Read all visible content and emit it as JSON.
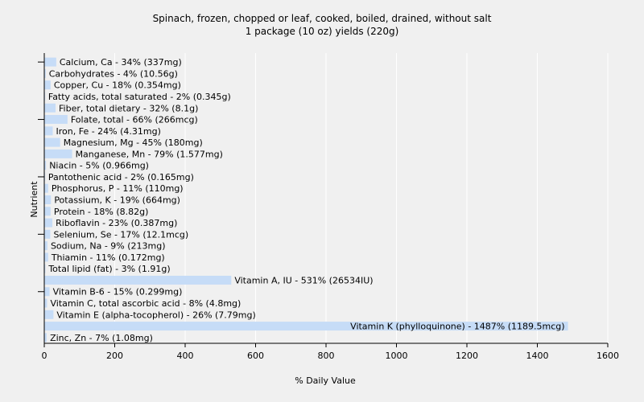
{
  "chart_data": {
    "type": "bar",
    "orientation": "horizontal",
    "title": "Spinach, frozen, chopped or leaf, cooked, boiled, drained, without salt",
    "subtitle": "1 package (10 oz) yields (220g)",
    "xlabel": "% Daily Value",
    "ylabel": "Nutrient",
    "xlim": [
      0,
      1600
    ],
    "xticks": [
      0,
      200,
      400,
      600,
      800,
      1000,
      1200,
      1400,
      1600
    ],
    "grid": true,
    "bar_color": "#c6dcf7",
    "categories": [
      "Calcium, Ca",
      "Carbohydrates",
      "Copper, Cu",
      "Fatty acids, total saturated",
      "Fiber, total dietary",
      "Folate, total",
      "Iron, Fe",
      "Magnesium, Mg",
      "Manganese, Mn",
      "Niacin",
      "Pantothenic acid",
      "Phosphorus, P",
      "Potassium, K",
      "Protein",
      "Riboflavin",
      "Selenium, Se",
      "Sodium, Na",
      "Thiamin",
      "Total lipid (fat)",
      "Vitamin A, IU",
      "Vitamin B-6",
      "Vitamin C, total ascorbic acid",
      "Vitamin E (alpha-tocopherol)",
      "Vitamin K (phylloquinone)",
      "Zinc, Zn"
    ],
    "values": [
      34,
      4,
      18,
      2,
      32,
      66,
      24,
      45,
      79,
      5,
      2,
      11,
      19,
      18,
      23,
      17,
      9,
      11,
      3,
      531,
      15,
      8,
      26,
      1487,
      7
    ],
    "labels": [
      "Calcium, Ca - 34% (337mg)",
      "Carbohydrates - 4% (10.56g)",
      "Copper, Cu - 18% (0.354mg)",
      "Fatty acids, total saturated - 2% (0.345g)",
      "Fiber, total dietary - 32% (8.1g)",
      "Folate, total - 66% (266mcg)",
      "Iron, Fe - 24% (4.31mg)",
      "Magnesium, Mg - 45% (180mg)",
      "Manganese, Mn - 79% (1.577mg)",
      "Niacin - 5% (0.966mg)",
      "Pantothenic acid - 2% (0.165mg)",
      "Phosphorus, P - 11% (110mg)",
      "Potassium, K - 19% (664mg)",
      "Protein - 18% (8.82g)",
      "Riboflavin - 23% (0.387mg)",
      "Selenium, Se - 17% (12.1mcg)",
      "Sodium, Na - 9% (213mg)",
      "Thiamin - 11% (0.172mg)",
      "Total lipid (fat) - 3% (1.91g)",
      "Vitamin A, IU - 531% (26534IU)",
      "Vitamin B-6 - 15% (0.299mg)",
      "Vitamin C, total ascorbic acid - 8% (4.8mg)",
      "Vitamin E (alpha-tocopherol) - 26% (7.79mg)",
      "Vitamin K (phylloquinone) - 1487% (1189.5mcg)",
      "Zinc, Zn - 7% (1.08mg)"
    ]
  }
}
